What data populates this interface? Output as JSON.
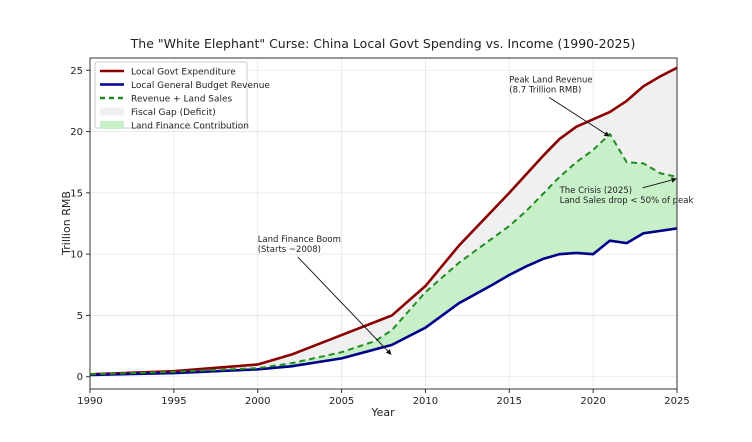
{
  "chart_data": {
    "type": "line",
    "title": "The \"White Elephant\" Curse: China Local Govt Spending vs. Income (1990-2025)",
    "xlabel": "Year",
    "ylabel": "Trillion RMB",
    "xlim": [
      1990,
      2025
    ],
    "ylim": [
      -1,
      26
    ],
    "grid": true,
    "legend_placement": "top-left",
    "xticks": [
      1990,
      1995,
      2000,
      2005,
      2010,
      2015,
      2020,
      2025
    ],
    "yticks": [
      0,
      5,
      10,
      15,
      20,
      25
    ],
    "series": [
      {
        "name": "Local Govt Expenditure",
        "color": "#8b0000",
        "style": "solid",
        "x": [
          1990,
          1995,
          2000,
          2002,
          2005,
          2008,
          2010,
          2012,
          2015,
          2017,
          2018,
          2019,
          2020,
          2021,
          2022,
          2023,
          2024,
          2025
        ],
        "y": [
          0.2,
          0.45,
          1.0,
          1.8,
          3.4,
          5.0,
          7.4,
          10.7,
          15.0,
          18.0,
          19.4,
          20.4,
          21.0,
          21.6,
          22.5,
          23.7,
          24.5,
          25.2
        ]
      },
      {
        "name": "Local General Budget Revenue",
        "color": "#00008b",
        "style": "solid",
        "x": [
          1990,
          1995,
          2000,
          2002,
          2005,
          2008,
          2010,
          2012,
          2014,
          2015,
          2016,
          2017,
          2018,
          2019,
          2020,
          2021,
          2022,
          2023,
          2024,
          2025
        ],
        "y": [
          0.15,
          0.3,
          0.6,
          0.85,
          1.5,
          2.6,
          4.0,
          6.0,
          7.5,
          8.3,
          9.0,
          9.6,
          10.0,
          10.1,
          10.0,
          11.1,
          10.9,
          11.7,
          11.9,
          12.1
        ]
      },
      {
        "name": "Revenue + Land Sales",
        "color": "#228b22",
        "style": "dashed",
        "x": [
          1990,
          1995,
          2000,
          2002,
          2005,
          2007,
          2008,
          2010,
          2012,
          2015,
          2016,
          2017,
          2018,
          2019,
          2020,
          2021,
          2022,
          2023,
          2024,
          2025
        ],
        "y": [
          0.2,
          0.4,
          0.7,
          1.1,
          2.0,
          2.9,
          3.8,
          6.9,
          9.3,
          12.3,
          13.5,
          14.9,
          16.3,
          17.5,
          18.5,
          19.8,
          17.5,
          17.4,
          16.6,
          16.3
        ]
      }
    ],
    "fills": [
      {
        "name": "Fiscal Gap (Deficit)",
        "color": "#f0f0f0",
        "between": [
          "Revenue + Land Sales",
          "Local Govt Expenditure"
        ]
      },
      {
        "name": "Land Finance Contribution",
        "color": "#c8f0c8",
        "between": [
          "Local General Budget Revenue",
          "Revenue + Land Sales"
        ]
      }
    ],
    "annotations": [
      {
        "lines": [
          "Peak Land Revenue",
          "(8.7 Trillion RMB)"
        ],
        "text_at": [
          2015,
          24
        ],
        "points_to": [
          2021,
          19.8
        ]
      },
      {
        "lines": [
          "The Crisis (2025)",
          "Land Sales drop < 50% of peak"
        ],
        "text_at": [
          2018,
          15
        ],
        "points_to": [
          2025,
          16.3
        ]
      },
      {
        "lines": [
          "Land Finance Boom",
          "(Starts ~2008)"
        ],
        "text_at": [
          2000,
          11
        ],
        "points_to": [
          2008,
          2.0
        ]
      }
    ]
  }
}
